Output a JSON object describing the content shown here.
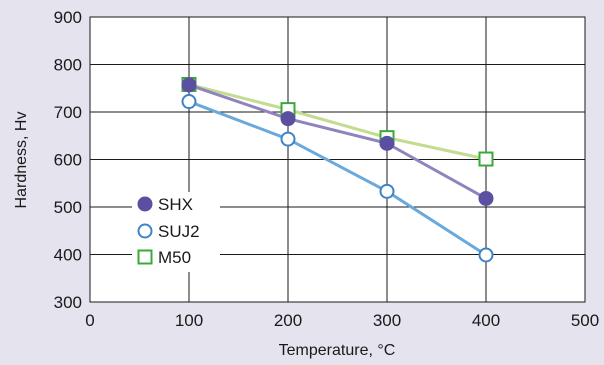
{
  "chart_data": {
    "type": "line",
    "title": "",
    "xlabel": "Temperature, °C",
    "ylabel": "Hardness, Hv",
    "xlim": [
      0,
      500
    ],
    "ylim": [
      300,
      900
    ],
    "xticks": [
      0,
      100,
      200,
      300,
      400,
      500
    ],
    "yticks": [
      300,
      400,
      500,
      600,
      700,
      800,
      900
    ],
    "grid": true,
    "legend_position": "left-middle",
    "series": [
      {
        "name": "SHX",
        "marker": "filled-circle",
        "color": "#5a4fa0",
        "line_color": "#9183bd",
        "x": [
          100,
          200,
          300,
          400
        ],
        "y": [
          757,
          686,
          634,
          518
        ]
      },
      {
        "name": "SUJ2",
        "marker": "open-circle",
        "color": "#3f82c9",
        "line_color": "#6aa9dc",
        "x": [
          100,
          200,
          300,
          400
        ],
        "y": [
          722,
          643,
          533,
          399
        ]
      },
      {
        "name": "M50",
        "marker": "open-square",
        "color": "#3aa93a",
        "line_color": "#c2dc90",
        "x": [
          100,
          200,
          300,
          400
        ],
        "y": [
          758,
          705,
          646,
          601
        ]
      }
    ]
  }
}
